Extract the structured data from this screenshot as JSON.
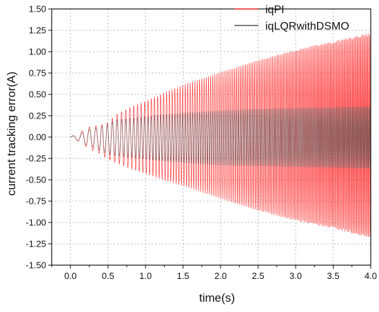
{
  "chart_data": {
    "type": "line",
    "title": "",
    "xlabel": "time(s)",
    "ylabel": "current tracking error(A)",
    "xlim": [
      -0.25,
      4.0
    ],
    "ylim": [
      -1.5,
      1.5
    ],
    "x_ticks": [
      0.0,
      0.5,
      1.0,
      1.5,
      2.0,
      2.5,
      3.0,
      3.5,
      4.0
    ],
    "x_tick_labels": [
      "0.0",
      "0.5",
      "1.0",
      "1.5",
      "2.0",
      "2.5",
      "3.0",
      "3.5",
      "4.0"
    ],
    "y_ticks": [
      -1.5,
      -1.25,
      -1.0,
      -0.75,
      -0.5,
      -0.25,
      0.0,
      0.25,
      0.5,
      0.75,
      1.0,
      1.25,
      1.5
    ],
    "y_tick_labels": [
      "-1.50",
      "-1.25",
      "-1.00",
      "-0.75",
      "-0.50",
      "-0.25",
      "0.00",
      "0.25",
      "0.50",
      "0.75",
      "1.00",
      "1.25",
      "1.50"
    ],
    "grid": true,
    "legend_position": "top-right",
    "series": [
      {
        "name": "iqPI",
        "color": "#ff2a2a",
        "x": [
          0.0,
          0.1,
          0.2,
          0.3,
          0.4,
          0.5,
          0.6,
          0.8,
          1.0,
          1.2,
          1.5,
          1.8,
          2.0,
          2.5,
          3.0,
          3.5,
          4.0
        ],
        "upper": [
          0.01,
          0.03,
          0.11,
          0.13,
          0.14,
          0.17,
          0.26,
          0.35,
          0.42,
          0.5,
          0.61,
          0.7,
          0.76,
          0.9,
          1.02,
          1.12,
          1.22
        ],
        "lower": [
          -0.02,
          -0.05,
          -0.11,
          -0.16,
          -0.2,
          -0.26,
          -0.3,
          -0.37,
          -0.43,
          -0.49,
          -0.57,
          -0.66,
          -0.72,
          -0.86,
          -0.98,
          -1.07,
          -1.18
        ]
      },
      {
        "name": "iqLQRwithDSMO",
        "color": "#555555",
        "x": [
          0.0,
          0.1,
          0.2,
          0.3,
          0.4,
          0.5,
          0.6,
          0.8,
          1.0,
          1.2,
          1.5,
          1.8,
          2.0,
          2.5,
          3.0,
          3.5,
          4.0
        ],
        "upper": [
          0.01,
          0.02,
          0.08,
          0.1,
          0.12,
          0.15,
          0.2,
          0.22,
          0.24,
          0.26,
          0.28,
          0.3,
          0.31,
          0.33,
          0.34,
          0.35,
          0.36
        ],
        "lower": [
          -0.01,
          -0.04,
          -0.09,
          -0.12,
          -0.16,
          -0.2,
          -0.22,
          -0.24,
          -0.26,
          -0.28,
          -0.3,
          -0.32,
          -0.33,
          -0.34,
          -0.35,
          -0.36,
          -0.37
        ]
      }
    ]
  }
}
